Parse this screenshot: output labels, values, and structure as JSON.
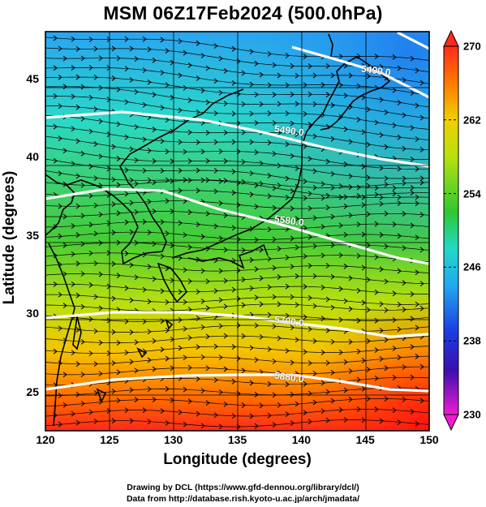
{
  "title": "MSM 06Z17Feb2024 (500.0hPa)",
  "xlabel": "Longitude (degrees)",
  "ylabel": "Latitude  (degrees)",
  "credits": {
    "line1": "Drawing by DCL (https://www.gfd-dennou.org/library/dcl/)",
    "line2": "Data from http://database.rish.kyoto-u.ac.jp/arch/jmadata/"
  },
  "map": {
    "lon_range": [
      120,
      150
    ],
    "lat_range": [
      22.5,
      48
    ],
    "lon_ticks": [
      "120",
      "125",
      "130",
      "135",
      "140",
      "145",
      "150"
    ],
    "lat_ticks": [
      "25",
      "30",
      "35",
      "40",
      "45"
    ],
    "field_description_colors": [
      "#ff2020",
      "#ff9a00",
      "#d8e600",
      "#40cc38",
      "#29d6c0",
      "#33a8f0",
      "#2240e0"
    ],
    "contours": [
      {
        "label": "5400.0",
        "color": "#ffffff"
      },
      {
        "label": "5490.0",
        "color": "#ffffff"
      },
      {
        "label": "5580.0",
        "color": "#ffffff"
      },
      {
        "label": "5700.0",
        "color": "#ffffff"
      },
      {
        "label": "5880.0",
        "color": "#ffffff"
      }
    ]
  },
  "colorbar": {
    "ticks": [
      "270",
      "262",
      "254",
      "246",
      "238",
      "230"
    ],
    "min": 230,
    "max": 270
  }
}
